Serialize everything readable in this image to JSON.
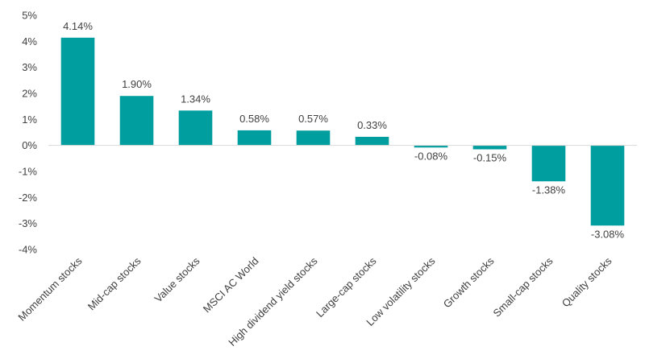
{
  "chart_data": {
    "type": "bar",
    "title": "",
    "xlabel": "",
    "ylabel": "",
    "categories": [
      "Momentum stocks",
      "Mid-cap stocks",
      "Value stocks",
      "MSCI AC World",
      "High dividend yield stocks",
      "Large-cap stocks",
      "Low volatility stocks",
      "Growth stocks",
      "Small-cap stocks",
      "Quality stocks"
    ],
    "values": [
      4.14,
      1.9,
      1.34,
      0.58,
      0.57,
      0.33,
      -0.08,
      -0.15,
      -1.38,
      -3.08
    ],
    "value_labels": [
      "4.14%",
      "1.90%",
      "1.34%",
      "0.58%",
      "0.57%",
      "0.33%",
      "-0.08%",
      "-0.15%",
      "-1.38%",
      "-3.08%"
    ],
    "ylim": [
      -4,
      5
    ],
    "y_ticks": [
      5,
      4,
      3,
      2,
      1,
      0,
      -1,
      -2,
      -3,
      -4
    ],
    "y_tick_labels": [
      "5%",
      "4%",
      "3%",
      "2%",
      "1%",
      "0%",
      "-1%",
      "-2%",
      "-3%",
      "-4%"
    ],
    "grid": false,
    "legend": "none",
    "colors": {
      "bar": "#009E9E",
      "axis": "#D9D9D9",
      "text": "#404040"
    }
  }
}
